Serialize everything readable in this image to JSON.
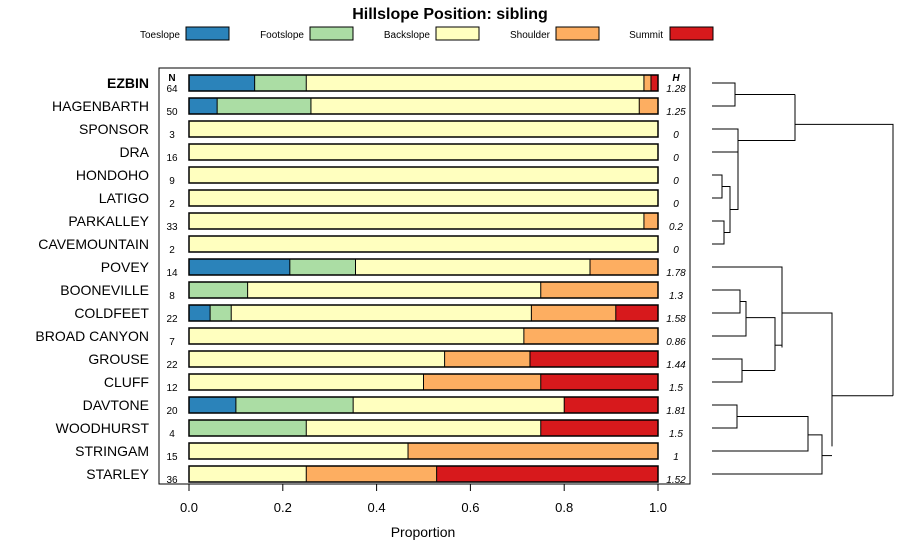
{
  "chart_data": {
    "type": "bar",
    "orientation": "horizontal",
    "stacked": true,
    "title": "Hillslope Position: sibling",
    "xlabel": "Proportion",
    "ylabel": "",
    "xlim": [
      0,
      1
    ],
    "x_ticks": [
      "0.0",
      "0.2",
      "0.4",
      "0.6",
      "0.8",
      "1.0"
    ],
    "n_header": "N",
    "h_header": "H",
    "legend_position": "top",
    "series": [
      {
        "name": "Toeslope",
        "color": "#2b83ba"
      },
      {
        "name": "Footslope",
        "color": "#abdda4"
      },
      {
        "name": "Backslope",
        "color": "#ffffbf"
      },
      {
        "name": "Shoulder",
        "color": "#fdae61"
      },
      {
        "name": "Summit",
        "color": "#d7191c"
      }
    ],
    "rows": [
      {
        "label": "EZBIN",
        "n": "64",
        "h": "1.28",
        "bold": true,
        "values": [
          0.14,
          0.11,
          0.72,
          0.015,
          0.015
        ]
      },
      {
        "label": "HAGENBARTH",
        "n": "50",
        "h": "1.25",
        "bold": false,
        "values": [
          0.06,
          0.2,
          0.7,
          0.04,
          0.0
        ]
      },
      {
        "label": "SPONSOR",
        "n": "3",
        "h": "0",
        "bold": false,
        "values": [
          0,
          0,
          1.0,
          0,
          0
        ]
      },
      {
        "label": "DRA",
        "n": "16",
        "h": "0",
        "bold": false,
        "values": [
          0,
          0,
          1.0,
          0,
          0
        ]
      },
      {
        "label": "HONDOHO",
        "n": "9",
        "h": "0",
        "bold": false,
        "values": [
          0,
          0,
          1.0,
          0,
          0
        ]
      },
      {
        "label": "LATIGO",
        "n": "2",
        "h": "0",
        "bold": false,
        "values": [
          0,
          0,
          1.0,
          0,
          0
        ]
      },
      {
        "label": "PARKALLEY",
        "n": "33",
        "h": "0.2",
        "bold": false,
        "values": [
          0,
          0,
          0.97,
          0.03,
          0
        ]
      },
      {
        "label": "CAVEMOUNTAIN",
        "n": "2",
        "h": "0",
        "bold": false,
        "values": [
          0,
          0,
          1.0,
          0,
          0
        ]
      },
      {
        "label": "POVEY",
        "n": "14",
        "h": "1.78",
        "bold": false,
        "values": [
          0.215,
          0.14,
          0.5,
          0.145,
          0
        ]
      },
      {
        "label": "BOONEVILLE",
        "n": "8",
        "h": "1.3",
        "bold": false,
        "values": [
          0,
          0.125,
          0.625,
          0.25,
          0
        ]
      },
      {
        "label": "COLDFEET",
        "n": "22",
        "h": "1.58",
        "bold": false,
        "values": [
          0.045,
          0.045,
          0.64,
          0.18,
          0.09
        ]
      },
      {
        "label": "BROAD CANYON",
        "n": "7",
        "h": "0.86",
        "bold": false,
        "values": [
          0,
          0,
          0.714,
          0.286,
          0
        ]
      },
      {
        "label": "GROUSE",
        "n": "22",
        "h": "1.44",
        "bold": false,
        "values": [
          0,
          0,
          0.545,
          0.182,
          0.273
        ]
      },
      {
        "label": "CLUFF",
        "n": "12",
        "h": "1.5",
        "bold": false,
        "values": [
          0,
          0,
          0.5,
          0.25,
          0.25
        ]
      },
      {
        "label": "DAVTONE",
        "n": "20",
        "h": "1.81",
        "bold": false,
        "values": [
          0.1,
          0.25,
          0.45,
          0.0,
          0.2
        ]
      },
      {
        "label": "WOODHURST",
        "n": "4",
        "h": "1.5",
        "bold": false,
        "values": [
          0,
          0.25,
          0.5,
          0,
          0.25
        ]
      },
      {
        "label": "STRINGAM",
        "n": "15",
        "h": "1",
        "bold": false,
        "values": [
          0,
          0,
          0.467,
          0.533,
          0
        ]
      },
      {
        "label": "STARLEY",
        "n": "36",
        "h": "1.52",
        "bold": false,
        "values": [
          0,
          0,
          0.25,
          0.278,
          0.472
        ]
      }
    ],
    "dendrogram": {
      "type": "hierarchical-clustering",
      "position": "right",
      "merges": [
        {
          "children": [
            0,
            1
          ],
          "height": 0.08
        },
        {
          "children": [
            3,
            4
          ],
          "height": 0.045
        },
        {
          "children": [
            5,
            6
          ],
          "height": 0.03
        },
        {
          "children": [
            0.5,
            2
          ],
          "height": 0.02
        },
        {
          "children": [
            "n2",
            "n3"
          ],
          "height": 0.06
        },
        {
          "children": [
            2,
            "n5"
          ],
          "height": 0.12
        },
        {
          "children": [
            7,
            "n6"
          ],
          "height": 0.1
        },
        {
          "children": [
            2.5,
            "n7"
          ],
          "height": 0.2
        },
        {
          "children": [
            "n1",
            "n8"
          ],
          "height": 0.42
        }
      ]
    }
  }
}
